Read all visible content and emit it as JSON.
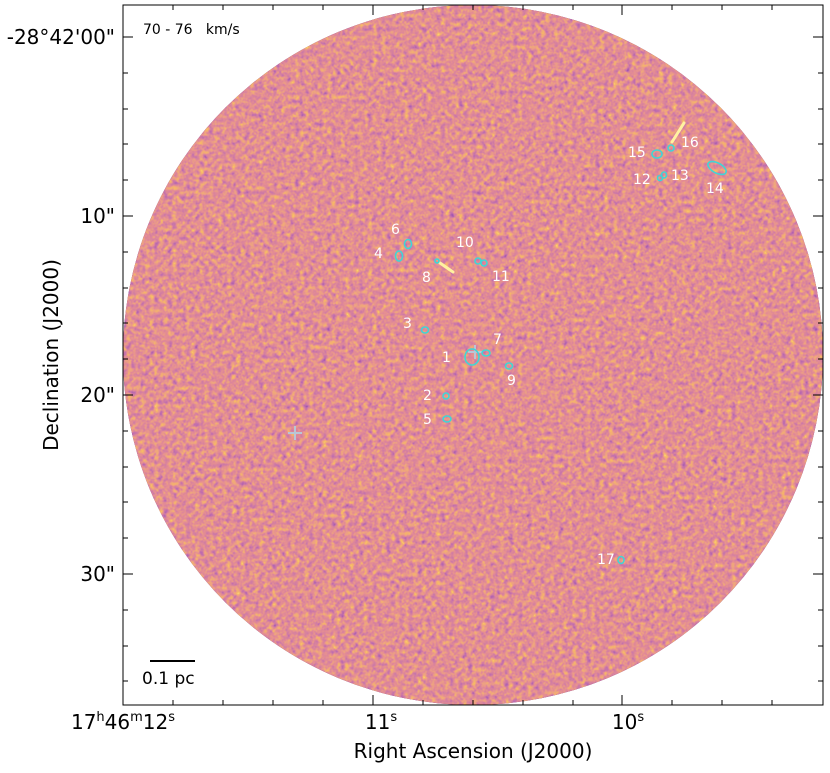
{
  "panel_label": "70 - 76   km/s",
  "x_axis": {
    "title": "Right Ascension (J2000)",
    "ticks": [
      {
        "id": "ra-12",
        "label": "17h46m12s",
        "parts": [
          "17",
          "h",
          "46",
          "m",
          "12",
          "s"
        ]
      },
      {
        "id": "ra-11",
        "label": "11s",
        "parts": [
          "11",
          "s"
        ]
      },
      {
        "id": "ra-10",
        "label": "10s",
        "parts": [
          "10",
          "s"
        ]
      }
    ]
  },
  "y_axis": {
    "title": "Declination (J2000)",
    "ticks": [
      {
        "id": "dec-00",
        "label": "-28°42'00\""
      },
      {
        "id": "dec-10",
        "label": "10\""
      },
      {
        "id": "dec-20",
        "label": "20\""
      },
      {
        "id": "dec-30",
        "label": "30\""
      }
    ]
  },
  "scale_bar": {
    "label": "0.1 pc"
  },
  "colors": {
    "colormap": [
      "#1a0a3a",
      "#4a1270",
      "#8a2a6a",
      "#c8454a",
      "#ee7a22",
      "#fbc03a",
      "#fff4a8"
    ],
    "contour": "#3fd6d6",
    "markers": "#b9c6d6",
    "labels": "#ffffff"
  },
  "sources": [
    {
      "id": "1",
      "label": "1"
    },
    {
      "id": "2",
      "label": "2"
    },
    {
      "id": "3",
      "label": "3"
    },
    {
      "id": "4",
      "label": "4"
    },
    {
      "id": "5",
      "label": "5"
    },
    {
      "id": "6",
      "label": "6"
    },
    {
      "id": "7",
      "label": "7"
    },
    {
      "id": "8",
      "label": "8"
    },
    {
      "id": "9",
      "label": "9"
    },
    {
      "id": "10",
      "label": "10"
    },
    {
      "id": "11",
      "label": "11"
    },
    {
      "id": "12",
      "label": "12"
    },
    {
      "id": "13",
      "label": "13"
    },
    {
      "id": "14",
      "label": "14"
    },
    {
      "id": "15",
      "label": "15"
    },
    {
      "id": "16",
      "label": "16"
    },
    {
      "id": "17",
      "label": "17"
    }
  ]
}
